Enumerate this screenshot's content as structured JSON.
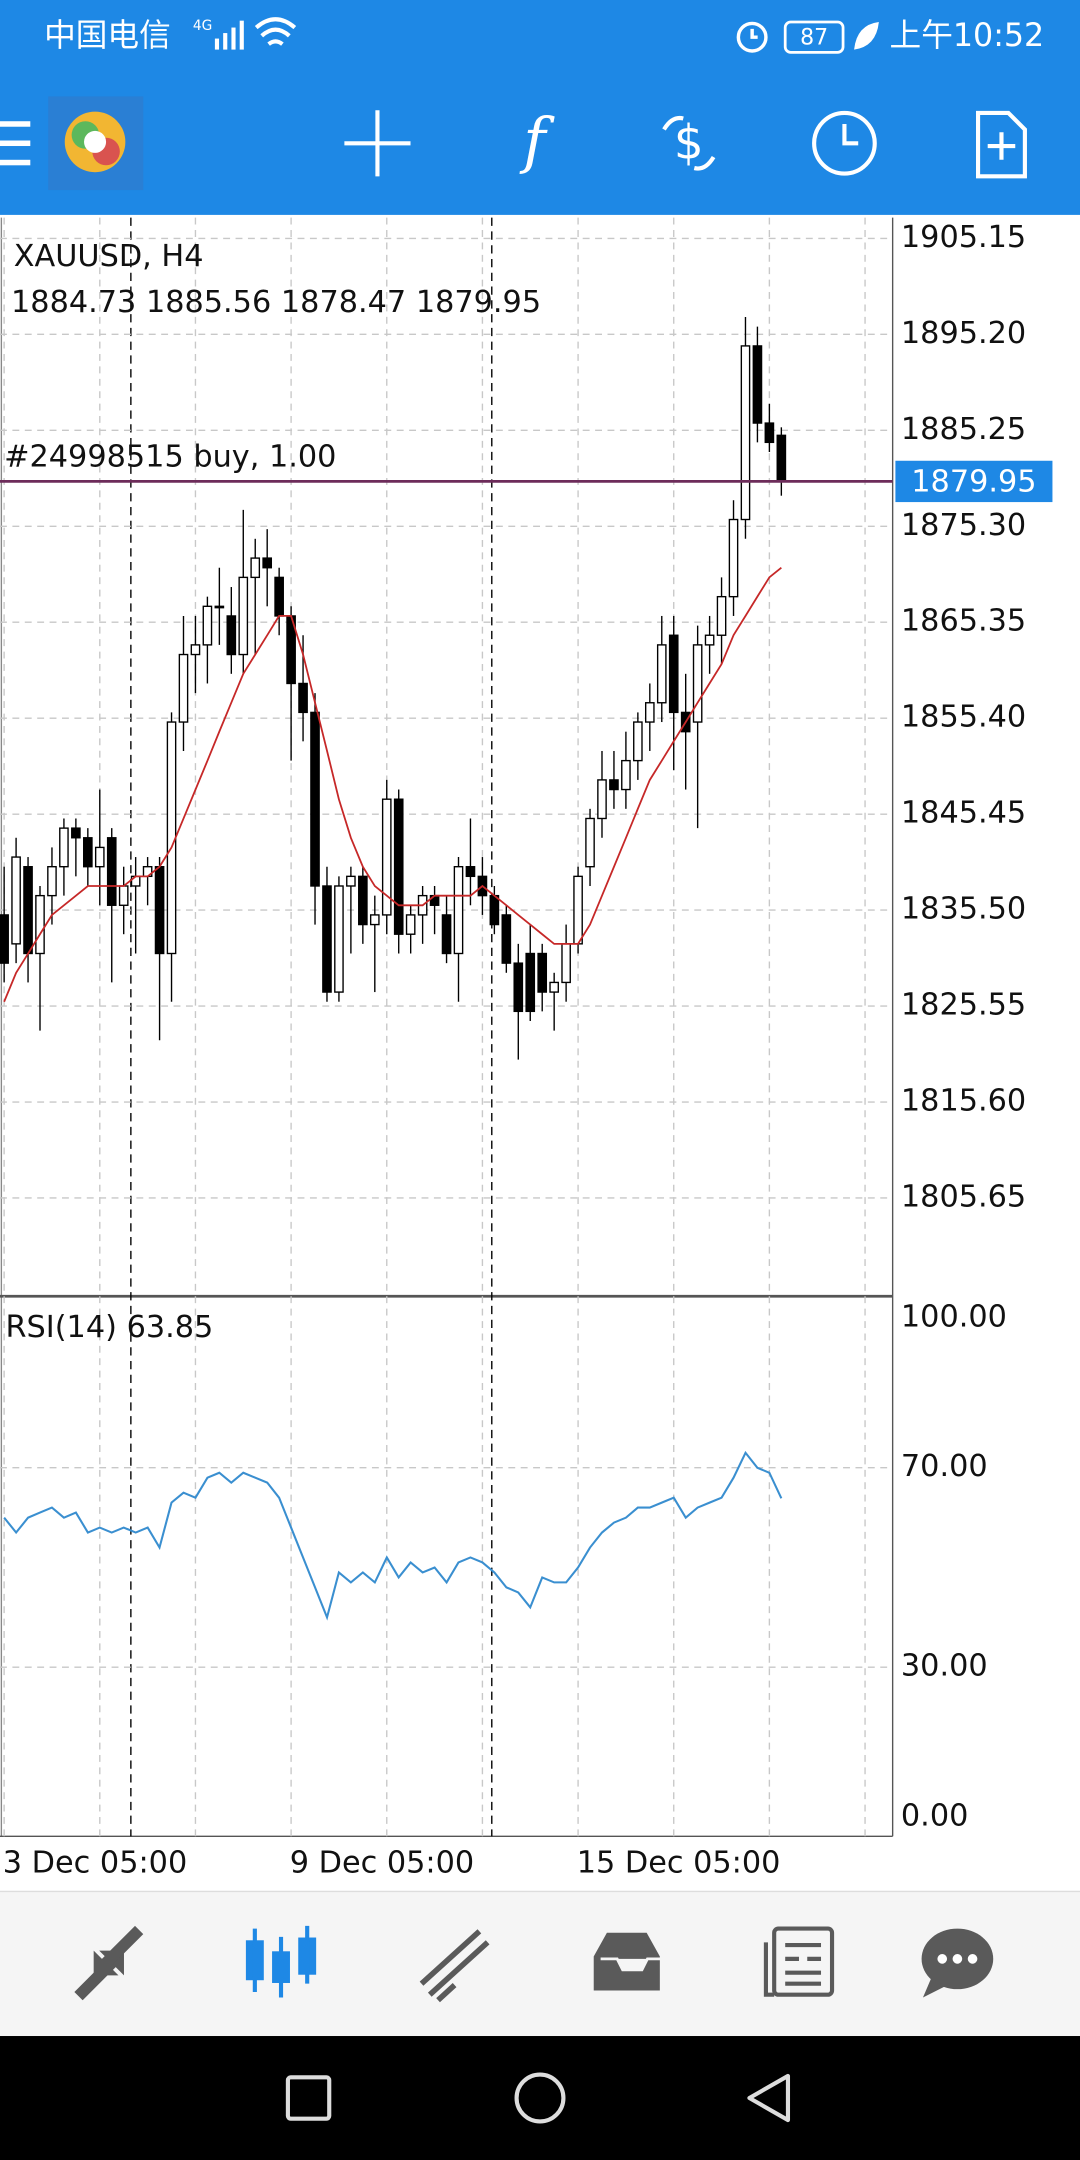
{
  "status_bar": {
    "carrier": "中国电信",
    "network": "4G",
    "battery": "87",
    "time": "上午10:52"
  },
  "chart_data": {
    "type": "candlestick",
    "title": "XAUUSD, H4",
    "trade_label": "#24998515 buy, 1.00",
    "categories": [
      "3 Dec 05:00",
      null,
      null,
      null,
      null,
      null,
      null,
      null,
      null,
      null,
      null,
      null,
      null,
      null,
      null,
      null,
      null,
      null,
      null,
      null,
      null,
      null,
      null,
      null,
      "9 Dec 05:00",
      null,
      null,
      null,
      null,
      null,
      null,
      null,
      null,
      null,
      null,
      null,
      null,
      null,
      null,
      null,
      null,
      null,
      null,
      null,
      null,
      null,
      null,
      null,
      "15 Dec 05:00",
      null,
      null,
      null,
      null,
      null,
      null,
      null,
      null,
      null,
      null,
      null,
      null,
      null,
      null,
      null,
      null,
      null
    ],
    "open": [
      1835,
      1832,
      1840,
      1831,
      1837,
      1840,
      1844,
      1843,
      1840,
      1843,
      1836,
      1838,
      1839,
      1840,
      1831,
      1855,
      1862,
      1863,
      1867,
      1866,
      1862,
      1870,
      1872,
      1870,
      1866,
      1859,
      1856,
      1838,
      1827,
      1838,
      1839,
      1834,
      1835,
      1847,
      1833,
      1835,
      1837,
      1835,
      1831,
      1840,
      1839,
      1837,
      1835,
      1830,
      1831,
      1831,
      1827,
      1828,
      1832,
      1840,
      1845,
      1849,
      1848,
      1851,
      1855,
      1857,
      1864,
      1856,
      1855,
      1863,
      1864,
      1868,
      1876,
      1894,
      1886,
      1884.73
    ],
    "high": [
      1840,
      1843,
      1841,
      1838,
      1842,
      1845,
      1845,
      1844,
      1848,
      1844,
      1840,
      1841,
      1841,
      1841,
      1856,
      1866,
      1866,
      1868,
      1871,
      1869,
      1877,
      1874,
      1875,
      1871,
      1867,
      1864,
      1858,
      1840,
      1839,
      1840,
      1840,
      1837,
      1849,
      1848,
      1836,
      1838,
      1838,
      1837,
      1841,
      1845,
      1841,
      1838,
      1836,
      1832,
      1834,
      1832,
      1829,
      1834,
      1840,
      1846,
      1852,
      1852,
      1854,
      1856,
      1859,
      1866,
      1866,
      1860,
      1865,
      1866,
      1870,
      1878,
      1897,
      1896,
      1888,
      1885.56
    ],
    "low": [
      1828,
      1830,
      1828,
      1823,
      1834,
      1837,
      1839,
      1838,
      1836,
      1828,
      1833,
      1831,
      1836,
      1822,
      1826,
      1852,
      1858,
      1859,
      1863,
      1860,
      1860,
      1862,
      1867,
      1864,
      1851,
      1853,
      1834,
      1826,
      1826,
      1831,
      1832,
      1827,
      1833,
      1831,
      1831,
      1832,
      1833,
      1830,
      1826,
      1836,
      1835,
      1833,
      1829,
      1820,
      1824,
      1825,
      1823,
      1826,
      1831,
      1838,
      1843,
      1846,
      1846,
      1849,
      1852,
      1855,
      1850,
      1848,
      1844,
      1860,
      1861,
      1866,
      1874,
      1884,
      1883,
      1878.47
    ],
    "close": [
      1830,
      1841,
      1831,
      1837,
      1840,
      1844,
      1843,
      1840,
      1842,
      1836,
      1838,
      1839,
      1840,
      1831,
      1855,
      1862,
      1863,
      1867,
      1867,
      1862,
      1870,
      1872,
      1871,
      1866,
      1859,
      1856,
      1838,
      1827,
      1838,
      1839,
      1834,
      1835,
      1847,
      1833,
      1835,
      1837,
      1836,
      1831,
      1840,
      1839,
      1837,
      1834,
      1830,
      1825,
      1825,
      1827,
      1828,
      1832,
      1839,
      1845,
      1849,
      1848,
      1851,
      1855,
      1857,
      1863,
      1856,
      1854,
      1863,
      1864,
      1868,
      1876,
      1894,
      1886,
      1884,
      1879.95
    ],
    "up_color": "#ffffff",
    "down_color": "#000000",
    "ma": {
      "color": "#c62828",
      "values": [
        1826,
        1829,
        1831,
        1833,
        1835,
        1836,
        1837,
        1838,
        1838,
        1838,
        1838,
        1839,
        1839,
        1840,
        1842,
        1845,
        1848,
        1851,
        1854,
        1857,
        1860,
        1862,
        1864,
        1866,
        1866,
        1862,
        1857,
        1852,
        1847,
        1843,
        1840,
        1838,
        1837,
        1836,
        1836,
        1836,
        1837,
        1837,
        1837,
        1837,
        1838,
        1837,
        1836,
        1835,
        1834,
        1833,
        1832,
        1832,
        1832,
        1834,
        1837,
        1840,
        1843,
        1846,
        1849,
        1851,
        1853,
        1855,
        1857,
        1859,
        1861,
        1864,
        1866,
        1868,
        1870,
        1871
      ]
    },
    "ylim": [
      1795.6,
      1907.3
    ],
    "yticks": [
      1905.15,
      {
        "value": 1895.2,
        "label": "1895.20"
      },
      1885.25,
      {
        "value": 1875.3,
        "label": "1875.30"
      },
      1865.35,
      {
        "value": 1855.4,
        "label": "1855.40"
      },
      1845.45,
      {
        "value": 1835.5,
        "label": "1835.50"
      },
      1825.55,
      {
        "value": 1815.6,
        "label": "1815.60"
      },
      1805.65
    ],
    "grid": true,
    "rsi": {
      "name": "RSI(14)",
      "color": "#3a8fd0",
      "values": [
        60,
        57,
        60,
        61,
        62,
        60,
        61,
        57,
        58,
        57,
        58,
        57,
        58,
        54,
        63,
        65,
        64,
        68,
        69,
        67,
        69,
        68,
        67,
        64,
        58,
        52,
        46,
        40,
        49,
        47,
        49,
        47,
        52,
        48,
        51,
        49,
        50,
        47,
        51,
        52,
        51,
        49,
        46,
        45,
        42,
        48,
        47,
        47,
        50,
        54,
        57,
        59,
        60,
        62,
        62,
        63,
        64,
        60,
        62,
        63,
        64,
        68,
        73,
        70,
        69,
        63.85
      ],
      "ylim": [
        -3.9,
        104.1
      ],
      "yticks": [
        {
          "value": 100,
          "label": "100.00"
        },
        {
          "value": 70,
          "label": "70.00"
        },
        {
          "value": 30,
          "label": "30.00"
        },
        {
          "value": 0,
          "label": "0.00"
        }
      ]
    }
  }
}
